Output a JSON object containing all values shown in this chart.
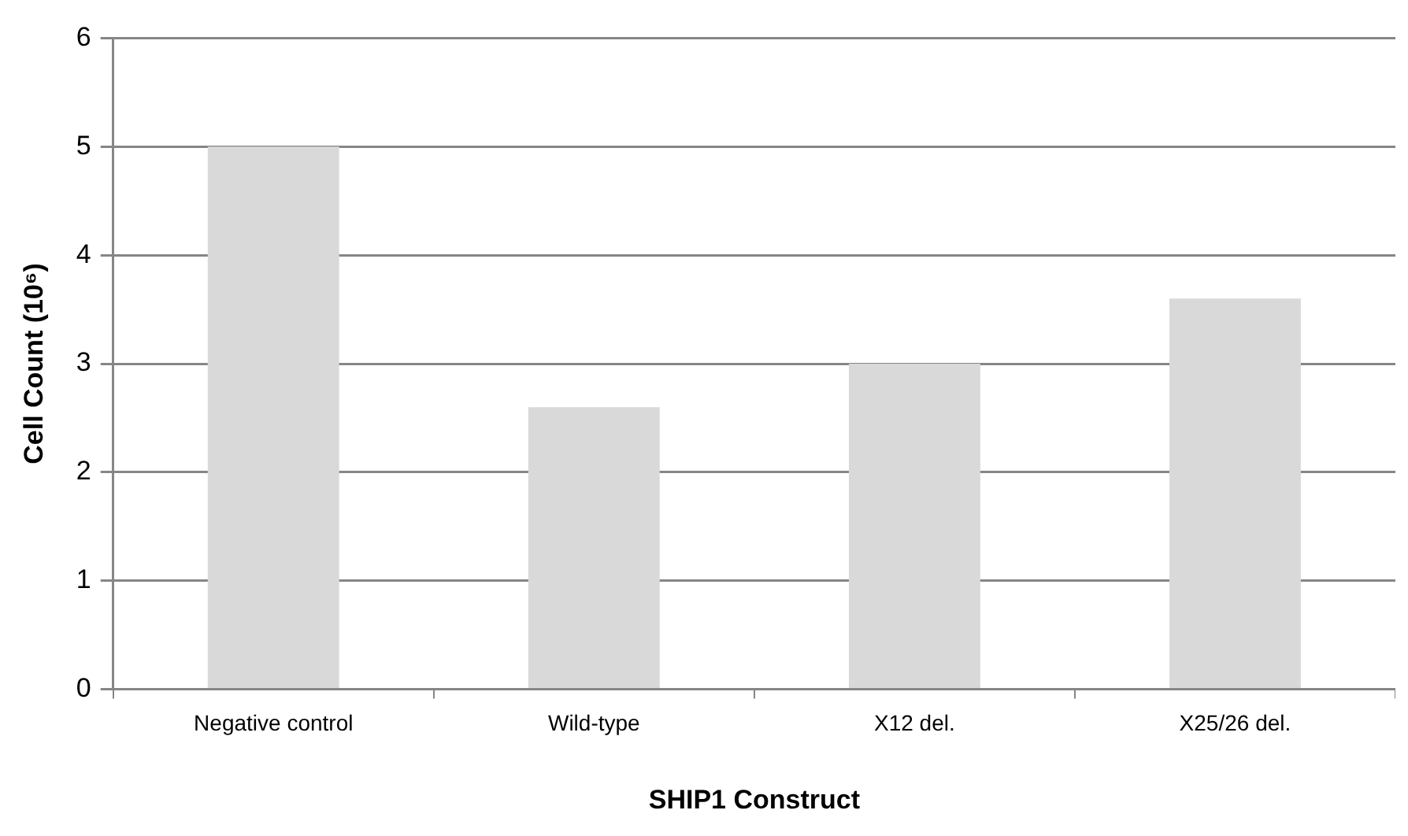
{
  "chart_data": {
    "type": "bar",
    "xlabel": "SHIP1 Construct",
    "ylabel": "Cell Count (10⁶)",
    "categories": [
      "Negative control",
      "Wild-type",
      "X12 del.",
      "X25/26 del."
    ],
    "values": [
      5.0,
      2.6,
      3.0,
      3.6
    ],
    "color": "#d9d9d9",
    "ylim": [
      0,
      6
    ],
    "yticks": [
      0,
      1,
      2,
      3,
      4,
      5,
      6
    ],
    "grid": "y"
  }
}
